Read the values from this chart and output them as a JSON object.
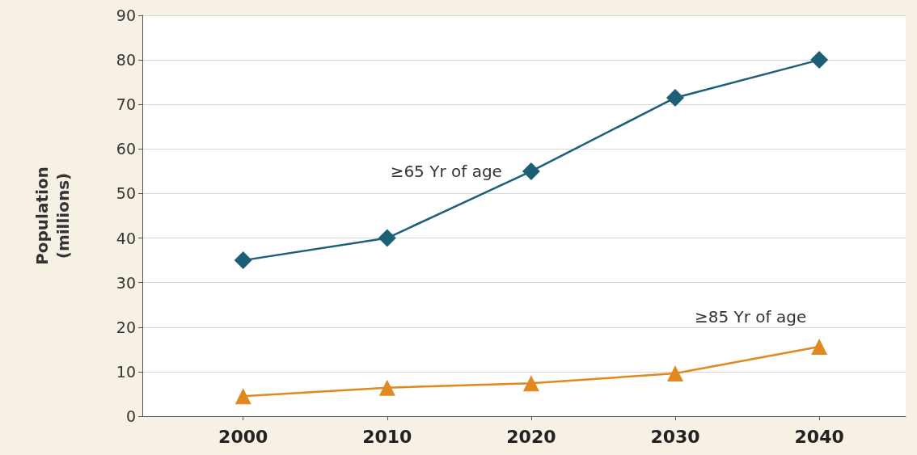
{
  "chart_data": {
    "type": "line",
    "ylabel": "Population\n(millions)",
    "x": [
      2000,
      2010,
      2020,
      2030,
      2040
    ],
    "xlim": [
      1993,
      2046
    ],
    "xticks": [
      2000,
      2010,
      2020,
      2030,
      2040
    ],
    "ylim": [
      0,
      90
    ],
    "yticks": [
      0,
      10,
      20,
      30,
      40,
      50,
      60,
      70,
      80,
      90
    ],
    "grid": "y",
    "series": [
      {
        "name": "≥65 Yr of age",
        "color": "#1e5f78",
        "marker": "diamond",
        "values": [
          35,
          40,
          55,
          71.5,
          80
        ]
      },
      {
        "name": "≥85 Yr of age",
        "color": "#e0891f",
        "marker": "triangle",
        "values": [
          4.5,
          6.4,
          7.4,
          9.6,
          15.6
        ]
      }
    ]
  }
}
